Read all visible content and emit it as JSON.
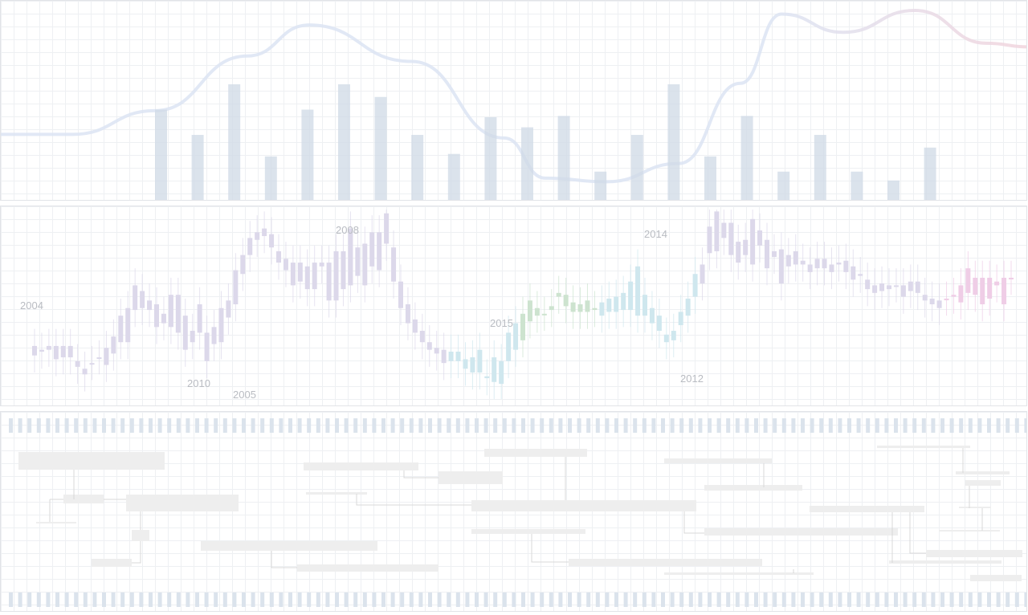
{
  "chart_data": [
    {
      "type": "bar",
      "title": "",
      "xlabel": "",
      "ylabel": "",
      "values": [
        0.72,
        0.52,
        0.92,
        0.35,
        0.72,
        0.92,
        0.82,
        0.52,
        0.37,
        0.66,
        0.58,
        0.67,
        0.23,
        0.52,
        0.92,
        0.35,
        0.67,
        0.23,
        0.52,
        0.23,
        0.16,
        0.42
      ],
      "ylim": [
        0,
        1
      ],
      "overlay_curves": [
        {
          "points": [
            [
              0,
              0.32
            ],
            [
              0.07,
              0.32
            ],
            [
              0.15,
              0.45
            ],
            [
              0.24,
              0.75
            ],
            [
              0.3,
              0.92
            ],
            [
              0.4,
              0.72
            ],
            [
              0.49,
              0.3
            ],
            [
              0.53,
              0.08
            ],
            [
              0.59,
              0.06
            ],
            [
              0.66,
              0.16
            ],
            [
              0.72,
              0.6
            ],
            [
              0.76,
              0.98
            ],
            [
              0.82,
              0.88
            ],
            [
              0.89,
              1.0
            ],
            [
              0.96,
              0.82
            ],
            [
              1.0,
              0.8
            ]
          ]
        }
      ],
      "colors": {
        "bar": "#cfd9e6",
        "curve_start": "#dce4f3",
        "curve_end": "#f1d4dd"
      }
    },
    {
      "type": "candlestick",
      "title": "",
      "year_labels": [
        "2004",
        "2008",
        "2010",
        "2005",
        "2015",
        "2014",
        "2012"
      ],
      "candles": [
        {
          "open": 0.28,
          "close": 0.23
        },
        {
          "open": 0.26,
          "close": 0.25
        },
        {
          "open": 0.26,
          "close": 0.28
        },
        {
          "open": 0.28,
          "close": 0.21
        },
        {
          "open": 0.22,
          "close": 0.28
        },
        {
          "open": 0.28,
          "close": 0.22
        },
        {
          "open": 0.2,
          "close": 0.17
        },
        {
          "open": 0.16,
          "close": 0.13
        },
        {
          "open": 0.19,
          "close": 0.19
        },
        {
          "open": 0.22,
          "close": 0.22
        },
        {
          "open": 0.18,
          "close": 0.27
        },
        {
          "open": 0.24,
          "close": 0.33
        },
        {
          "open": 0.3,
          "close": 0.44
        },
        {
          "open": 0.3,
          "close": 0.48
        },
        {
          "open": 0.47,
          "close": 0.6
        },
        {
          "open": 0.48,
          "close": 0.57
        },
        {
          "open": 0.47,
          "close": 0.52
        },
        {
          "open": 0.5,
          "close": 0.38
        },
        {
          "open": 0.4,
          "close": 0.45
        },
        {
          "open": 0.38,
          "close": 0.55
        },
        {
          "open": 0.55,
          "close": 0.35
        },
        {
          "open": 0.44,
          "close": 0.26
        },
        {
          "open": 0.36,
          "close": 0.3
        },
        {
          "open": 0.5,
          "close": 0.35
        },
        {
          "open": 0.35,
          "close": 0.2
        },
        {
          "open": 0.38,
          "close": 0.29
        },
        {
          "open": 0.3,
          "close": 0.48
        },
        {
          "open": 0.52,
          "close": 0.43
        },
        {
          "open": 0.5,
          "close": 0.68
        },
        {
          "open": 0.66,
          "close": 0.76
        },
        {
          "open": 0.76,
          "close": 0.85
        },
        {
          "open": 0.84,
          "close": 0.88
        },
        {
          "open": 0.9,
          "close": 0.86
        },
        {
          "open": 0.87,
          "close": 0.8
        },
        {
          "open": 0.78,
          "close": 0.72
        },
        {
          "open": 0.74,
          "close": 0.68
        },
        {
          "open": 0.72,
          "close": 0.6
        },
        {
          "open": 0.62,
          "close": 0.72
        },
        {
          "open": 0.7,
          "close": 0.58
        },
        {
          "open": 0.58,
          "close": 0.72
        },
        {
          "open": 0.72,
          "close": 0.7
        },
        {
          "open": 0.72,
          "close": 0.52
        },
        {
          "open": 0.52,
          "close": 0.78
        },
        {
          "open": 0.78,
          "close": 0.58
        },
        {
          "open": 0.6,
          "close": 0.9
        },
        {
          "open": 0.65,
          "close": 0.8
        },
        {
          "open": 0.82,
          "close": 0.6
        },
        {
          "open": 0.7,
          "close": 0.88
        },
        {
          "open": 0.88,
          "close": 0.68
        },
        {
          "open": 0.98,
          "close": 0.82
        },
        {
          "open": 0.8,
          "close": 0.62
        },
        {
          "open": 0.62,
          "close": 0.48
        },
        {
          "open": 0.5,
          "close": 0.4
        },
        {
          "open": 0.42,
          "close": 0.35
        },
        {
          "open": 0.36,
          "close": 0.3
        },
        {
          "open": 0.3,
          "close": 0.26
        },
        {
          "open": 0.27,
          "close": 0.24
        },
        {
          "open": 0.26,
          "close": 0.19
        },
        {
          "open": 0.25,
          "close": 0.2
        },
        {
          "open": 0.25,
          "close": 0.2
        },
        {
          "open": 0.21,
          "close": 0.16
        },
        {
          "open": 0.22,
          "close": 0.14
        },
        {
          "open": 0.14,
          "close": 0.26
        },
        {
          "open": 0.12,
          "close": 0.11
        },
        {
          "open": 0.09,
          "close": 0.22
        },
        {
          "open": 0.08,
          "close": 0.2
        },
        {
          "open": 0.2,
          "close": 0.35
        },
        {
          "open": 0.26,
          "close": 0.4
        },
        {
          "open": 0.31,
          "close": 0.45
        },
        {
          "open": 0.41,
          "close": 0.52
        },
        {
          "open": 0.44,
          "close": 0.48
        },
        {
          "open": 0.45,
          "close": 0.45
        },
        {
          "open": 0.47,
          "close": 0.49
        },
        {
          "open": 0.56,
          "close": 0.54
        },
        {
          "open": 0.49,
          "close": 0.55
        },
        {
          "open": 0.51,
          "close": 0.46
        },
        {
          "open": 0.5,
          "close": 0.46
        },
        {
          "open": 0.46,
          "close": 0.52
        },
        {
          "open": 0.48,
          "close": 0.47
        },
        {
          "open": 0.51,
          "close": 0.44
        },
        {
          "open": 0.46,
          "close": 0.53
        },
        {
          "open": 0.54,
          "close": 0.46
        },
        {
          "open": 0.47,
          "close": 0.56
        },
        {
          "open": 0.47,
          "close": 0.62
        },
        {
          "open": 0.7,
          "close": 0.44
        },
        {
          "open": 0.44,
          "close": 0.55
        },
        {
          "open": 0.48,
          "close": 0.4
        },
        {
          "open": 0.44,
          "close": 0.36
        },
        {
          "open": 0.34,
          "close": 0.3
        },
        {
          "open": 0.31,
          "close": 0.36
        },
        {
          "open": 0.39,
          "close": 0.46
        },
        {
          "open": 0.44,
          "close": 0.53
        },
        {
          "open": 0.54,
          "close": 0.66
        },
        {
          "open": 0.61,
          "close": 0.71
        },
        {
          "open": 0.77,
          "close": 0.91
        },
        {
          "open": 0.78,
          "close": 0.99
        },
        {
          "open": 0.85,
          "close": 0.93
        },
        {
          "open": 0.93,
          "close": 0.76
        },
        {
          "open": 0.83,
          "close": 0.72
        },
        {
          "open": 0.76,
          "close": 0.84
        },
        {
          "open": 0.71,
          "close": 0.95
        },
        {
          "open": 0.89,
          "close": 0.81
        },
        {
          "open": 0.84,
          "close": 0.69
        },
        {
          "open": 0.78,
          "close": 0.75
        },
        {
          "open": 0.79,
          "close": 0.61
        },
        {
          "open": 0.7,
          "close": 0.76
        },
        {
          "open": 0.78,
          "close": 0.71
        },
        {
          "open": 0.73,
          "close": 0.71
        },
        {
          "open": 0.71,
          "close": 0.67
        },
        {
          "open": 0.69,
          "close": 0.74
        },
        {
          "open": 0.74,
          "close": 0.69
        },
        {
          "open": 0.71,
          "close": 0.67
        },
        {
          "open": 0.71,
          "close": 0.72
        },
        {
          "open": 0.73,
          "close": 0.67
        },
        {
          "open": 0.7,
          "close": 0.63
        },
        {
          "open": 0.66,
          "close": 0.65
        },
        {
          "open": 0.63,
          "close": 0.58
        },
        {
          "open": 0.6,
          "close": 0.56
        },
        {
          "open": 0.57,
          "close": 0.61
        },
        {
          "open": 0.6,
          "close": 0.58
        },
        {
          "open": 0.6,
          "close": 0.6
        },
        {
          "open": 0.6,
          "close": 0.54
        },
        {
          "open": 0.57,
          "close": 0.62
        },
        {
          "open": 0.62,
          "close": 0.56
        },
        {
          "open": 0.55,
          "close": 0.52
        },
        {
          "open": 0.5,
          "close": 0.53
        },
        {
          "open": 0.48,
          "close": 0.52
        },
        {
          "open": 0.53,
          "close": 0.53
        },
        {
          "open": 0.54,
          "close": 0.55
        },
        {
          "open": 0.51,
          "close": 0.6
        },
        {
          "open": 0.56,
          "close": 0.69
        },
        {
          "open": 0.64,
          "close": 0.55
        },
        {
          "open": 0.64,
          "close": 0.5
        },
        {
          "open": 0.64,
          "close": 0.53
        },
        {
          "open": 0.62,
          "close": 0.6
        },
        {
          "open": 0.64,
          "close": 0.5
        },
        {
          "open": 0.64,
          "close": 0.64
        }
      ],
      "colors": {
        "early": "#dcd8ea",
        "mid_green": "#cde3cf",
        "cyan": "#cfe7ee",
        "late_pink": "#efcde6"
      }
    },
    {
      "type": "table",
      "title": "",
      "description_rows": [],
      "colors": {
        "tick": "#dbe3ec",
        "box": "#eeeeee",
        "connector": "#d8d8d8"
      }
    }
  ]
}
